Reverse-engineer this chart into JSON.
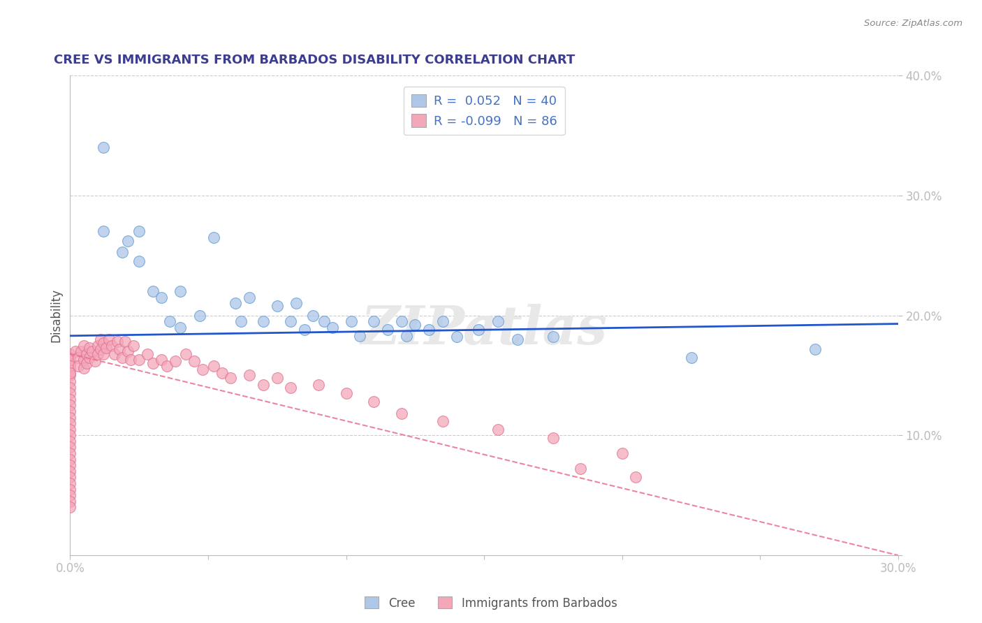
{
  "title": "CREE VS IMMIGRANTS FROM BARBADOS DISABILITY CORRELATION CHART",
  "source_text": "Source: ZipAtlas.com",
  "ylabel": "Disability",
  "xlim": [
    0.0,
    0.3
  ],
  "ylim": [
    0.0,
    0.4
  ],
  "xtick_positions": [
    0.0,
    0.05,
    0.1,
    0.15,
    0.2,
    0.25,
    0.3
  ],
  "xtick_labels": [
    "0.0%",
    "",
    "",
    "",
    "",
    "",
    "30.0%"
  ],
  "ytick_positions": [
    0.0,
    0.1,
    0.2,
    0.3,
    0.4
  ],
  "ytick_labels": [
    "",
    "10.0%",
    "20.0%",
    "30.0%",
    "40.0%"
  ],
  "cree_R": 0.052,
  "cree_N": 40,
  "barbados_R": -0.099,
  "barbados_N": 86,
  "watermark": "ZIPatlas",
  "title_color": "#3d3d8f",
  "source_color": "#888888",
  "axis_label_color": "#555555",
  "tick_label_color": "#4472c4",
  "legend_text_color": "#4472c4",
  "grid_color": "#cccccc",
  "cree_dot_color": "#aec6e8",
  "cree_dot_edge": "#5a9ad4",
  "barbados_dot_color": "#f4a7b9",
  "barbados_dot_edge": "#e07090",
  "cree_line_color": "#2255cc",
  "barbados_line_color": "#e87090",
  "cree_points_x": [
    0.012,
    0.012,
    0.019,
    0.021,
    0.025,
    0.025,
    0.03,
    0.033,
    0.036,
    0.04,
    0.04,
    0.047,
    0.052,
    0.06,
    0.062,
    0.065,
    0.07,
    0.075,
    0.08,
    0.082,
    0.085,
    0.088,
    0.092,
    0.095,
    0.102,
    0.105,
    0.11,
    0.115,
    0.12,
    0.122,
    0.125,
    0.13,
    0.135,
    0.14,
    0.148,
    0.155,
    0.162,
    0.175,
    0.225,
    0.27
  ],
  "cree_points_y": [
    0.34,
    0.27,
    0.253,
    0.262,
    0.27,
    0.245,
    0.22,
    0.215,
    0.195,
    0.22,
    0.19,
    0.2,
    0.265,
    0.21,
    0.195,
    0.215,
    0.195,
    0.208,
    0.195,
    0.21,
    0.188,
    0.2,
    0.195,
    0.19,
    0.195,
    0.183,
    0.195,
    0.188,
    0.195,
    0.183,
    0.192,
    0.188,
    0.195,
    0.182,
    0.188,
    0.195,
    0.18,
    0.182,
    0.165,
    0.172
  ],
  "barbados_points_x": [
    0.0,
    0.0,
    0.0,
    0.0,
    0.0,
    0.0,
    0.0,
    0.0,
    0.0,
    0.0,
    0.0,
    0.0,
    0.0,
    0.0,
    0.0,
    0.0,
    0.0,
    0.0,
    0.0,
    0.0,
    0.0,
    0.0,
    0.0,
    0.0,
    0.0,
    0.0,
    0.0,
    0.0,
    0.0,
    0.0,
    0.002,
    0.003,
    0.003,
    0.004,
    0.005,
    0.005,
    0.005,
    0.006,
    0.006,
    0.007,
    0.007,
    0.008,
    0.009,
    0.01,
    0.01,
    0.011,
    0.011,
    0.012,
    0.012,
    0.013,
    0.014,
    0.015,
    0.016,
    0.017,
    0.018,
    0.019,
    0.02,
    0.021,
    0.022,
    0.023,
    0.025,
    0.028,
    0.03,
    0.033,
    0.035,
    0.038,
    0.042,
    0.045,
    0.048,
    0.052,
    0.055,
    0.058,
    0.065,
    0.07,
    0.075,
    0.08,
    0.09,
    0.1,
    0.11,
    0.12,
    0.135,
    0.155,
    0.175,
    0.2,
    0.185,
    0.205
  ],
  "barbados_points_y": [
    0.165,
    0.16,
    0.155,
    0.15,
    0.145,
    0.14,
    0.135,
    0.13,
    0.125,
    0.12,
    0.115,
    0.11,
    0.105,
    0.1,
    0.095,
    0.09,
    0.085,
    0.08,
    0.075,
    0.07,
    0.065,
    0.06,
    0.055,
    0.05,
    0.045,
    0.04,
    0.168,
    0.163,
    0.158,
    0.152,
    0.17,
    0.165,
    0.158,
    0.17,
    0.163,
    0.156,
    0.175,
    0.168,
    0.16,
    0.173,
    0.165,
    0.17,
    0.162,
    0.175,
    0.168,
    0.18,
    0.172,
    0.177,
    0.168,
    0.173,
    0.18,
    0.175,
    0.168,
    0.178,
    0.172,
    0.165,
    0.178,
    0.17,
    0.163,
    0.175,
    0.163,
    0.168,
    0.16,
    0.163,
    0.158,
    0.162,
    0.168,
    0.162,
    0.155,
    0.158,
    0.152,
    0.148,
    0.15,
    0.142,
    0.148,
    0.14,
    0.142,
    0.135,
    0.128,
    0.118,
    0.112,
    0.105,
    0.098,
    0.085,
    0.072,
    0.065
  ],
  "cree_line_x": [
    0.0,
    0.3
  ],
  "cree_line_y": [
    0.183,
    0.193
  ],
  "barbados_line_x": [
    0.0,
    0.3
  ],
  "barbados_line_y": [
    0.168,
    0.0
  ],
  "legend_R1": "R =  0.052",
  "legend_N1": "N = 40",
  "legend_R2": "R = -0.099",
  "legend_N2": "N = 86"
}
